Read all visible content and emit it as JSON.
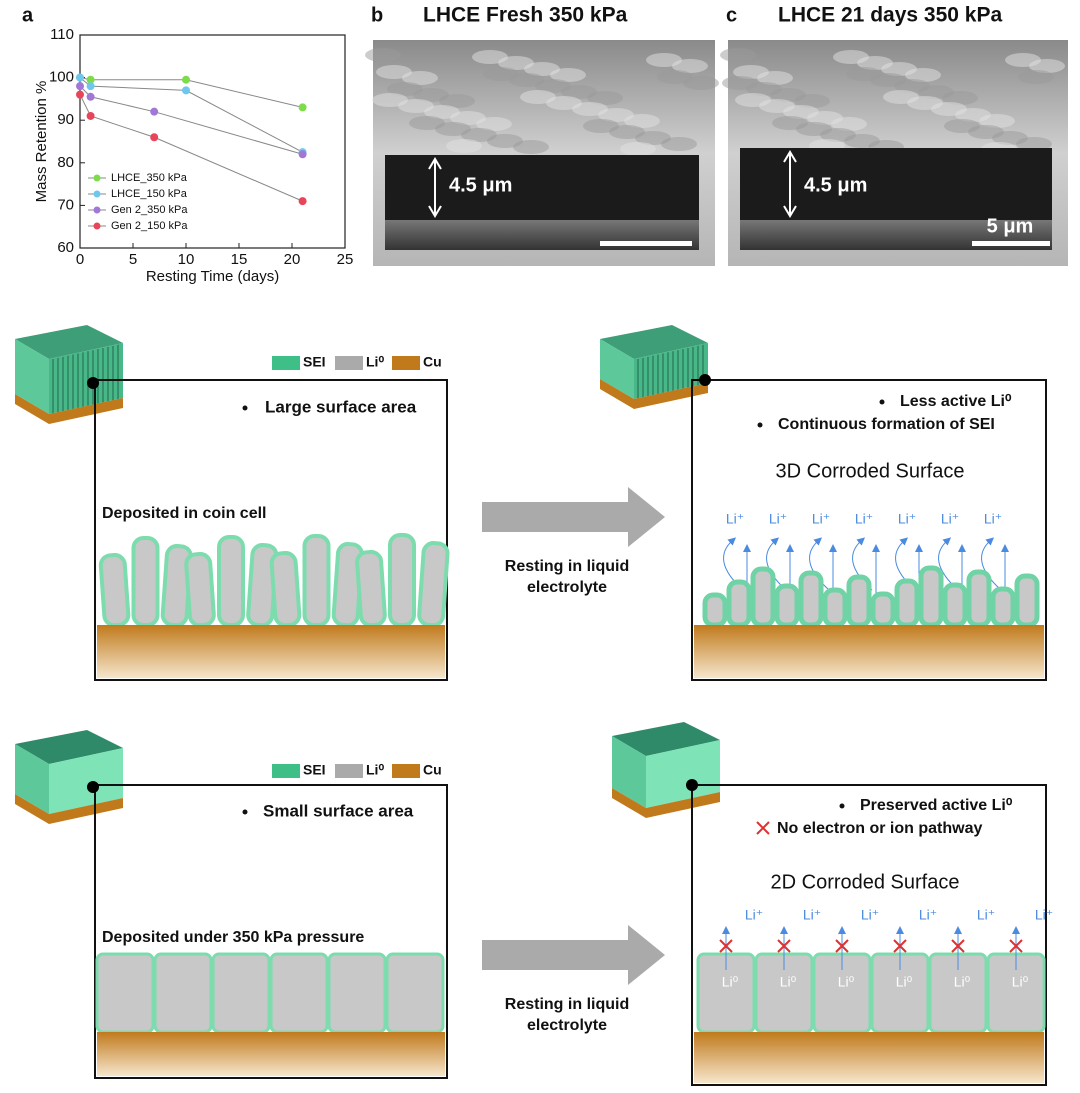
{
  "chart_data": {
    "type": "line",
    "panel_label": "a",
    "x_label": "Resting Time  (days)",
    "y_label": "Mass Retention %",
    "xlim": [
      0,
      25
    ],
    "xticks": [
      0,
      5,
      10,
      15,
      20,
      25
    ],
    "ylim": [
      60,
      110
    ],
    "yticks": [
      60,
      70,
      80,
      90,
      100,
      110
    ],
    "series": [
      {
        "name": "LHCE_350 kPa",
        "color": "#7ddc4a",
        "x": [
          0,
          1,
          10,
          21
        ],
        "values": [
          100,
          99.5,
          99.5,
          93
        ]
      },
      {
        "name": "LHCE_150 kPa",
        "color": "#6fc6ee",
        "x": [
          0,
          1,
          10,
          21
        ],
        "values": [
          100,
          98,
          97,
          82.5
        ]
      },
      {
        "name": "Gen 2_350 kPa",
        "color": "#a178d8",
        "x": [
          0,
          1,
          7,
          21
        ],
        "values": [
          98,
          95.5,
          92,
          82
        ]
      },
      {
        "name": "Gen 2_150 kPa",
        "color": "#e8455a",
        "x": [
          0,
          1,
          7,
          21
        ],
        "values": [
          96,
          91,
          86,
          71
        ]
      }
    ]
  },
  "panel_b": {
    "label": "b",
    "title": "LHCE Fresh 350 kPa",
    "thickness": "4.5 μm"
  },
  "panel_c": {
    "label": "c",
    "title": "LHCE 21 days 350 kPa",
    "thickness": "4.5 μm",
    "scale_bar": "5 μm"
  },
  "top_row": {
    "legend": [
      "SEI",
      "Li⁰",
      "Cu"
    ],
    "left": {
      "bullet": "Large surface area",
      "caption": "Deposited in coin cell"
    },
    "arrow_label": [
      "Resting in liquid",
      "electrolyte"
    ],
    "right": {
      "bullets": [
        "Less active Li⁰",
        "Continuous formation of SEI"
      ],
      "title": "3D Corroded Surface",
      "ions": [
        "Li⁺",
        "Li⁺",
        "Li⁺",
        "Li⁺",
        "Li⁺",
        "Li⁺",
        "Li⁺"
      ]
    }
  },
  "bottom_row": {
    "legend": [
      "SEI",
      "Li⁰",
      "Cu"
    ],
    "left": {
      "bullet": "Small surface area",
      "caption": "Deposited under 350 kPa pressure"
    },
    "arrow_label": [
      "Resting in liquid",
      "electrolyte"
    ],
    "right": {
      "bullets": [
        "Preserved active Li⁰",
        "No electron or ion pathway"
      ],
      "title": "2D Corroded Surface",
      "ions": [
        "Li⁺",
        "Li⁺",
        "Li⁺",
        "Li⁺",
        "Li⁺",
        "Li⁺"
      ],
      "metal": [
        "Li⁰",
        "Li⁰",
        "Li⁰",
        "Li⁰",
        "Li⁰",
        "Li⁰"
      ]
    }
  }
}
